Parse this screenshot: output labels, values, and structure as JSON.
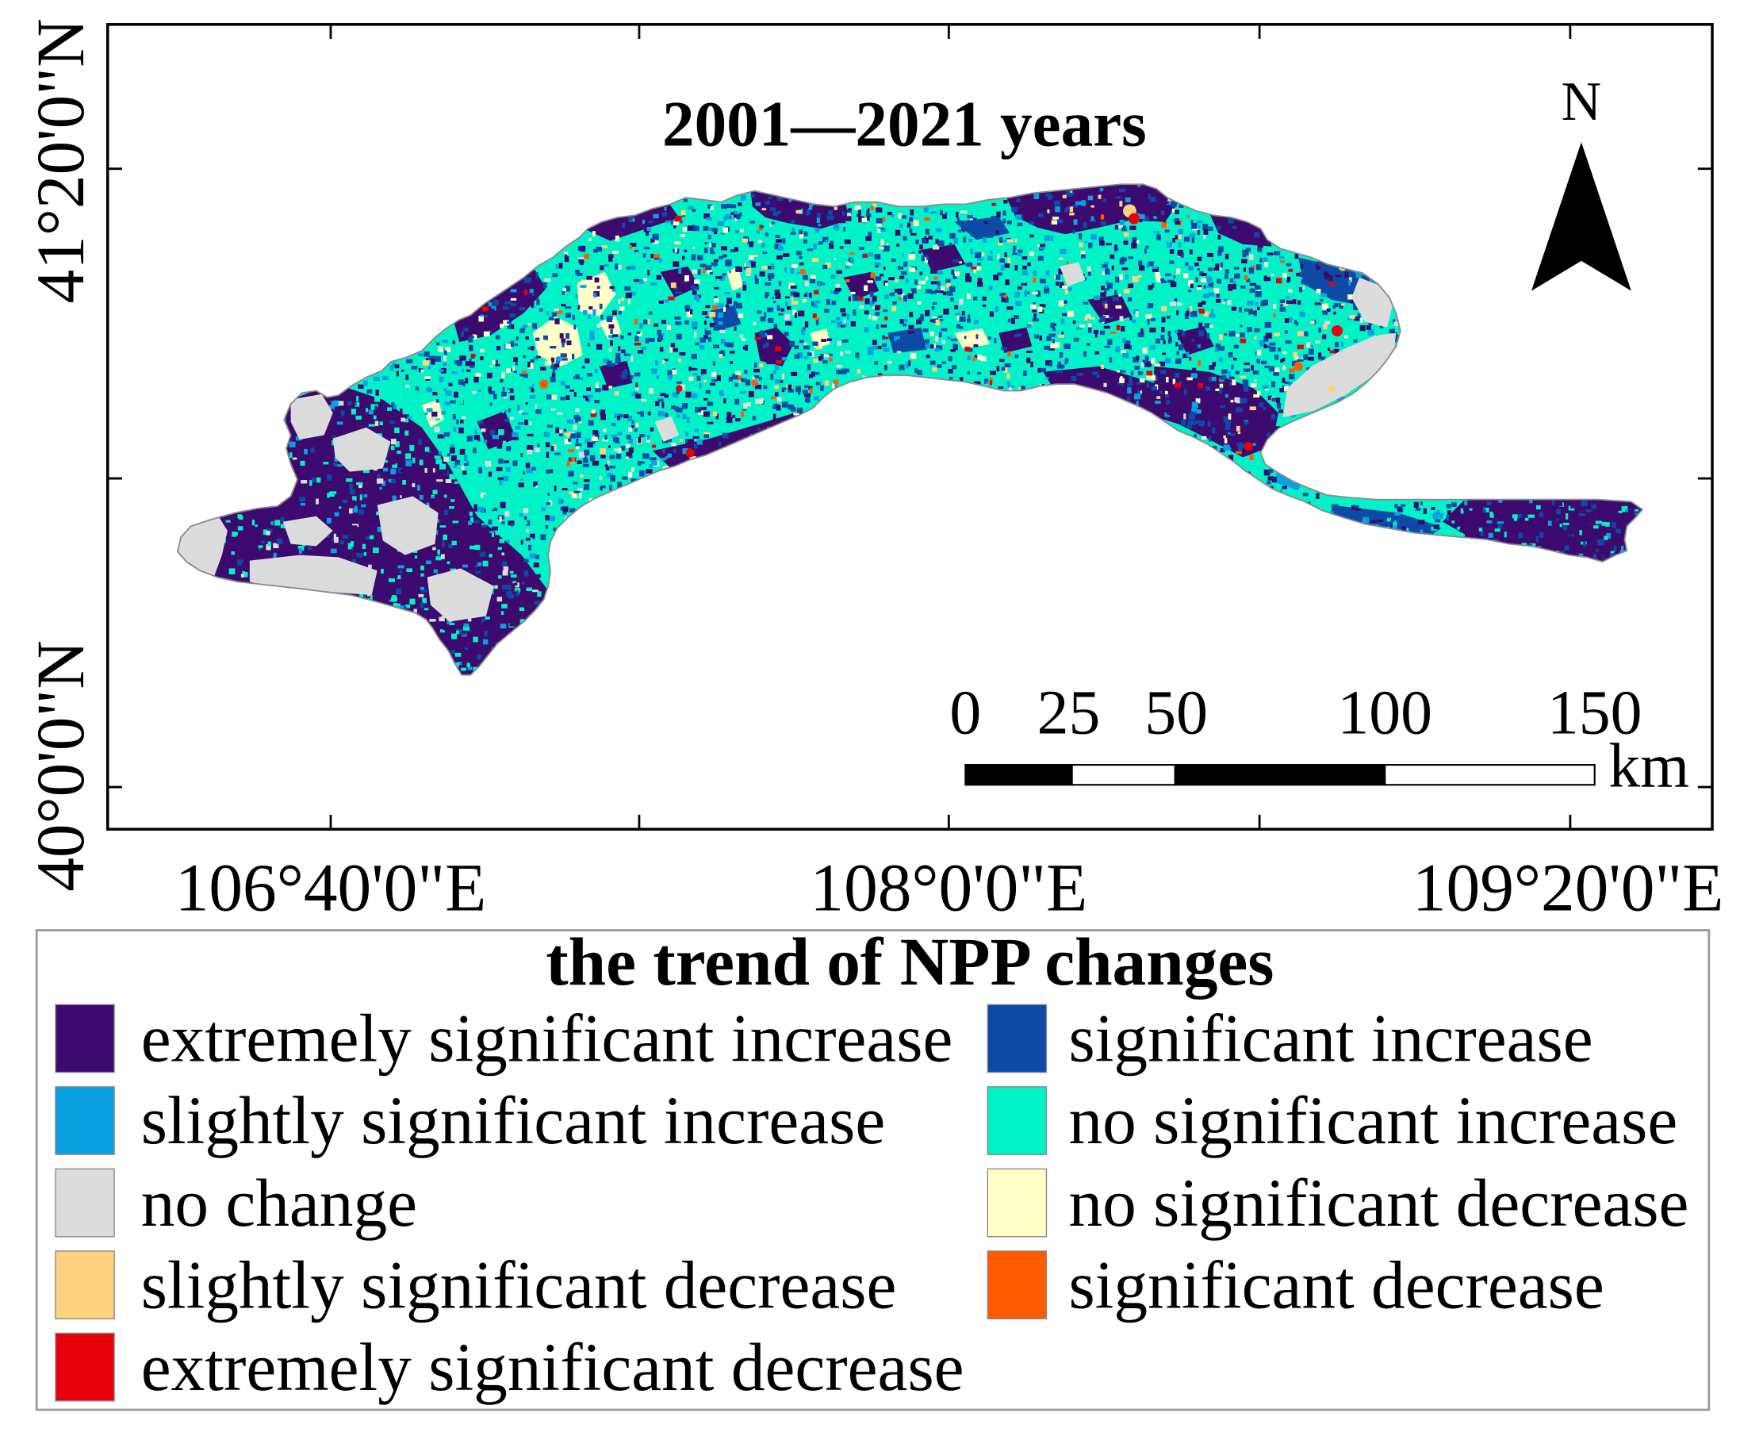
{
  "map": {
    "title": "2001—2021 years",
    "north_label": "N",
    "lat_labels": [
      "41°20'0\"N",
      "40°0'0\"N"
    ],
    "lon_labels": [
      "106°40'0\"E",
      "108°0'0\"E",
      "109°20'0\"E"
    ],
    "scale_bar": {
      "labels": [
        "0",
        "25",
        "50",
        "100",
        "150"
      ],
      "unit": "km"
    }
  },
  "legend": {
    "title": "the trend of NPP changes",
    "items": [
      {
        "label": "extremely significant increase",
        "color": "#3c0a6e"
      },
      {
        "label": "significant increase",
        "color": "#0c4aa6"
      },
      {
        "label": "slightly significant increase",
        "color": "#0aa0e2"
      },
      {
        "label": "no significant increase",
        "color": "#00f3c6"
      },
      {
        "label": "no change",
        "color": "#dcdcdc"
      },
      {
        "label": "no significant decrease",
        "color": "#ffffc8"
      },
      {
        "label": "slightly significant decrease",
        "color": "#ffd27f"
      },
      {
        "label": "significant decrease",
        "color": "#ff5a00"
      },
      {
        "label": "extremely significant decrease",
        "color": "#e6000b"
      }
    ]
  }
}
